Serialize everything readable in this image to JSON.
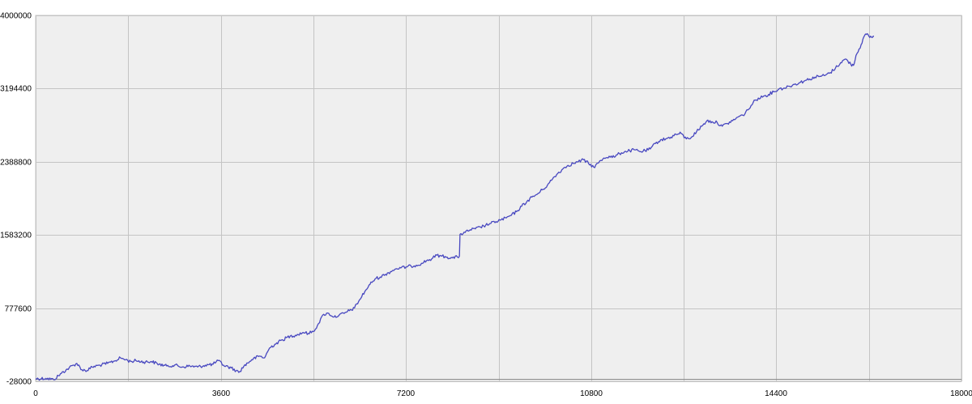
{
  "chart_data": {
    "type": "line",
    "title": "",
    "xlabel": "",
    "ylabel": "",
    "xlim": [
      0,
      18000
    ],
    "ylim": [
      -28000,
      4000000
    ],
    "x_ticks": [
      0,
      3600,
      7200,
      10800,
      14400,
      18000
    ],
    "x_tick_labels": [
      "0",
      "3600",
      "7200",
      "10800",
      "14400",
      "18000"
    ],
    "y_ticks": [
      -28000,
      777600,
      1583200,
      2388800,
      3194400,
      4000000
    ],
    "y_tick_labels": [
      "-28000",
      "777600",
      "1583200",
      "2388800",
      "3194400",
      "4000000"
    ],
    "grid": true,
    "legend": "none",
    "colors": {
      "background": "#efefef",
      "grid": "#c4c4c4",
      "line": "#4848c0",
      "baseline": "#8a8a8a"
    },
    "baseline_value": 0,
    "series": [
      {
        "points": [
          [
            0,
            0
          ],
          [
            200,
            5000
          ],
          [
            350,
            -10000
          ],
          [
            500,
            60000
          ],
          [
            650,
            120000
          ],
          [
            800,
            170000
          ],
          [
            900,
            100000
          ],
          [
            1000,
            90000
          ],
          [
            1100,
            130000
          ],
          [
            1250,
            150000
          ],
          [
            1400,
            170000
          ],
          [
            1550,
            200000
          ],
          [
            1650,
            230000
          ],
          [
            1750,
            210000
          ],
          [
            1850,
            190000
          ],
          [
            1950,
            200000
          ],
          [
            2100,
            185000
          ],
          [
            2250,
            190000
          ],
          [
            2400,
            160000
          ],
          [
            2550,
            140000
          ],
          [
            2700,
            150000
          ],
          [
            2850,
            130000
          ],
          [
            3000,
            140000
          ],
          [
            3150,
            130000
          ],
          [
            3300,
            150000
          ],
          [
            3450,
            160000
          ],
          [
            3550,
            200000
          ],
          [
            3650,
            150000
          ],
          [
            3800,
            120000
          ],
          [
            3900,
            90000
          ],
          [
            3950,
            70000
          ],
          [
            4050,
            140000
          ],
          [
            4200,
            210000
          ],
          [
            4350,
            250000
          ],
          [
            4450,
            230000
          ],
          [
            4550,
            340000
          ],
          [
            4650,
            380000
          ],
          [
            4800,
            430000
          ],
          [
            4950,
            470000
          ],
          [
            5050,
            480000
          ],
          [
            5200,
            510000
          ],
          [
            5300,
            500000
          ],
          [
            5400,
            520000
          ],
          [
            5480,
            590000
          ],
          [
            5600,
            710000
          ],
          [
            5700,
            720000
          ],
          [
            5800,
            680000
          ],
          [
            5900,
            700000
          ],
          [
            6000,
            720000
          ],
          [
            6100,
            750000
          ],
          [
            6200,
            780000
          ],
          [
            6300,
            870000
          ],
          [
            6400,
            960000
          ],
          [
            6500,
            1040000
          ],
          [
            6600,
            1100000
          ],
          [
            6700,
            1120000
          ],
          [
            6800,
            1150000
          ],
          [
            6900,
            1180000
          ],
          [
            7000,
            1210000
          ],
          [
            7100,
            1220000
          ],
          [
            7200,
            1230000
          ],
          [
            7300,
            1240000
          ],
          [
            7400,
            1250000
          ],
          [
            7500,
            1270000
          ],
          [
            7600,
            1300000
          ],
          [
            7700,
            1320000
          ],
          [
            7800,
            1360000
          ],
          [
            7900,
            1350000
          ],
          [
            8000,
            1340000
          ],
          [
            8100,
            1330000
          ],
          [
            8200,
            1340000
          ],
          [
            8240,
            1350000
          ],
          [
            8250,
            1590000
          ],
          [
            8350,
            1610000
          ],
          [
            8450,
            1640000
          ],
          [
            8550,
            1650000
          ],
          [
            8650,
            1670000
          ],
          [
            8750,
            1690000
          ],
          [
            8850,
            1710000
          ],
          [
            8950,
            1730000
          ],
          [
            9050,
            1750000
          ],
          [
            9150,
            1770000
          ],
          [
            9250,
            1800000
          ],
          [
            9350,
            1840000
          ],
          [
            9450,
            1900000
          ],
          [
            9550,
            1950000
          ],
          [
            9650,
            2000000
          ],
          [
            9750,
            2030000
          ],
          [
            9850,
            2080000
          ],
          [
            9950,
            2130000
          ],
          [
            10050,
            2200000
          ],
          [
            10150,
            2260000
          ],
          [
            10250,
            2310000
          ],
          [
            10350,
            2350000
          ],
          [
            10450,
            2370000
          ],
          [
            10550,
            2390000
          ],
          [
            10650,
            2410000
          ],
          [
            10750,
            2370000
          ],
          [
            10850,
            2330000
          ],
          [
            10950,
            2380000
          ],
          [
            11050,
            2430000
          ],
          [
            11150,
            2450000
          ],
          [
            11250,
            2440000
          ],
          [
            11350,
            2480000
          ],
          [
            11450,
            2500000
          ],
          [
            11550,
            2510000
          ],
          [
            11650,
            2520000
          ],
          [
            11750,
            2500000
          ],
          [
            11850,
            2510000
          ],
          [
            11950,
            2530000
          ],
          [
            12050,
            2590000
          ],
          [
            12150,
            2630000
          ],
          [
            12250,
            2640000
          ],
          [
            12350,
            2660000
          ],
          [
            12450,
            2690000
          ],
          [
            12550,
            2700000
          ],
          [
            12650,
            2640000
          ],
          [
            12750,
            2660000
          ],
          [
            12850,
            2720000
          ],
          [
            12950,
            2780000
          ],
          [
            13050,
            2840000
          ],
          [
            13150,
            2830000
          ],
          [
            13250,
            2820000
          ],
          [
            13350,
            2780000
          ],
          [
            13450,
            2810000
          ],
          [
            13550,
            2840000
          ],
          [
            13650,
            2880000
          ],
          [
            13750,
            2900000
          ],
          [
            13850,
            2960000
          ],
          [
            13950,
            3040000
          ],
          [
            14050,
            3090000
          ],
          [
            14150,
            3110000
          ],
          [
            14250,
            3130000
          ],
          [
            14350,
            3160000
          ],
          [
            14450,
            3190000
          ],
          [
            14550,
            3200000
          ],
          [
            14650,
            3220000
          ],
          [
            14750,
            3240000
          ],
          [
            14850,
            3260000
          ],
          [
            14950,
            3280000
          ],
          [
            15050,
            3300000
          ],
          [
            15150,
            3320000
          ],
          [
            15250,
            3330000
          ],
          [
            15350,
            3340000
          ],
          [
            15450,
            3370000
          ],
          [
            15550,
            3420000
          ],
          [
            15650,
            3480000
          ],
          [
            15750,
            3520000
          ],
          [
            15850,
            3460000
          ],
          [
            15900,
            3450000
          ],
          [
            15950,
            3560000
          ],
          [
            16050,
            3680000
          ],
          [
            16100,
            3760000
          ],
          [
            16150,
            3790000
          ],
          [
            16200,
            3770000
          ],
          [
            16250,
            3760000
          ],
          [
            16300,
            3770000
          ]
        ]
      }
    ]
  }
}
